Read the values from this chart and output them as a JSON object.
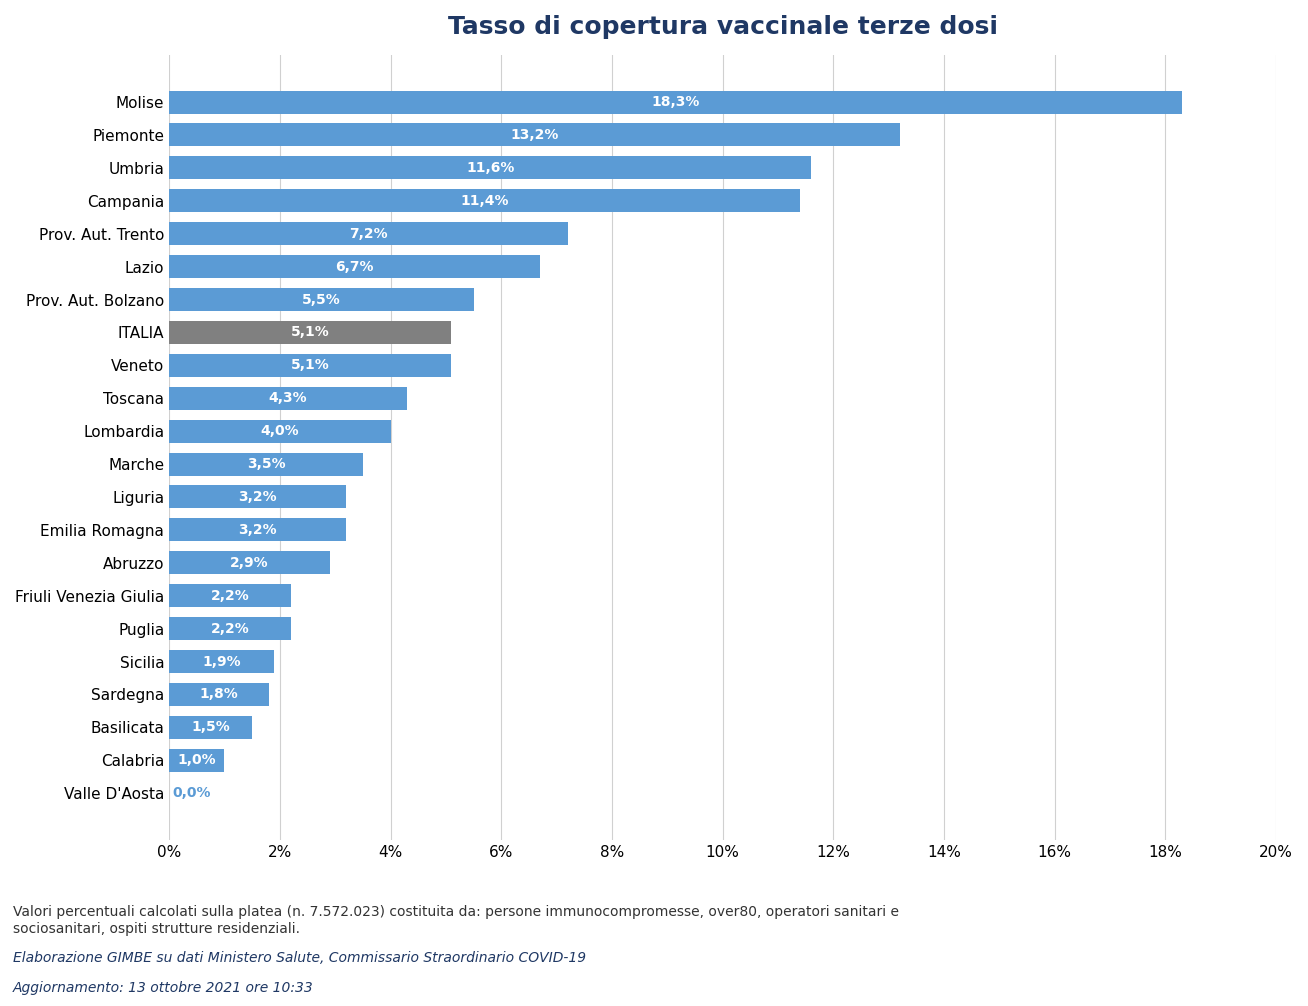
{
  "title": "Tasso di copertura vaccinale terze dosi",
  "title_color": "#1F3864",
  "categories": [
    "Valle D'Aosta",
    "Calabria",
    "Basilicata",
    "Sardegna",
    "Sicilia",
    "Puglia",
    "Friuli Venezia Giulia",
    "Abruzzo",
    "Emilia Romagna",
    "Liguria",
    "Marche",
    "Lombardia",
    "Toscana",
    "Veneto",
    "ITALIA",
    "Prov. Aut. Bolzano",
    "Lazio",
    "Prov. Aut. Trento",
    "Campania",
    "Umbria",
    "Piemonte",
    "Molise"
  ],
  "values": [
    0.0,
    1.0,
    1.5,
    1.8,
    1.9,
    2.2,
    2.2,
    2.9,
    3.2,
    3.2,
    3.5,
    4.0,
    4.3,
    5.1,
    5.1,
    5.5,
    6.7,
    7.2,
    11.4,
    11.6,
    13.2,
    18.3
  ],
  "labels": [
    "0,0%",
    "1,0%",
    "1,5%",
    "1,8%",
    "1,9%",
    "2,2%",
    "2,2%",
    "2,9%",
    "3,2%",
    "3,2%",
    "3,5%",
    "4,0%",
    "4,3%",
    "5,1%",
    "5,1%",
    "5,5%",
    "6,7%",
    "7,2%",
    "11,4%",
    "11,6%",
    "13,2%",
    "18,3%"
  ],
  "bar_color_default": "#5B9BD5",
  "bar_color_italia": "#808080",
  "bar_color_valle": "#5B9BD5",
  "italia_index": 14,
  "valle_index": 0,
  "xlim": [
    0,
    20
  ],
  "xtick_values": [
    0,
    2,
    4,
    6,
    8,
    10,
    12,
    14,
    16,
    18,
    20
  ],
  "xtick_labels": [
    "0%",
    "2%",
    "4%",
    "6%",
    "8%",
    "10%",
    "12%",
    "14%",
    "16%",
    "18%",
    "20%"
  ],
  "background_color": "#FFFFFF",
  "grid_color": "#D0D0D0",
  "label_color_white": "#FFFFFF",
  "label_color_blue": "#5B9BD5",
  "footer_text1": "Valori percentuali calcolati sulla platea (n. 7.572.023) costituita da: persone immunocompromesse, over80, operatori sanitari e\nsociosanitari, ospiti strutture residenziali.",
  "footer_text2": "Elaborazione GIMBE su dati Ministero Salute, Commissario Straordinario COVID-19",
  "footer_text3": "Aggiornamento: 13 ottobre 2021 ore 10:33",
  "footer_color1": "#333333",
  "footer_color2": "#1F3864"
}
